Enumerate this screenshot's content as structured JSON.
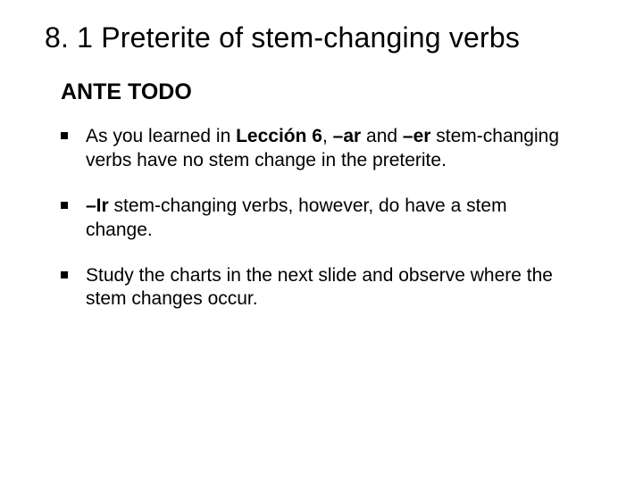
{
  "slide": {
    "title": "8. 1 Preterite of stem-changing verbs",
    "subtitle": "ANTE TODO",
    "bullets": [
      {
        "pre": "As you learned in ",
        "bold1": "Lección 6",
        "mid1": ", ",
        "bold2": "–ar",
        "mid2": " and ",
        "bold3": "–er",
        "post": " stem-changing verbs have no stem change in the preterite."
      },
      {
        "bold1": "–Ir",
        "post": " stem-changing verbs, however, do have a stem change."
      },
      {
        "pre": "Study the charts in the next slide and observe where the stem changes occur."
      }
    ],
    "colors": {
      "background": "#ffffff",
      "text": "#000000",
      "bullet": "#000000"
    },
    "fonts": {
      "title_size": 32,
      "subtitle_size": 25,
      "body_size": 21,
      "family": "Arial"
    }
  }
}
